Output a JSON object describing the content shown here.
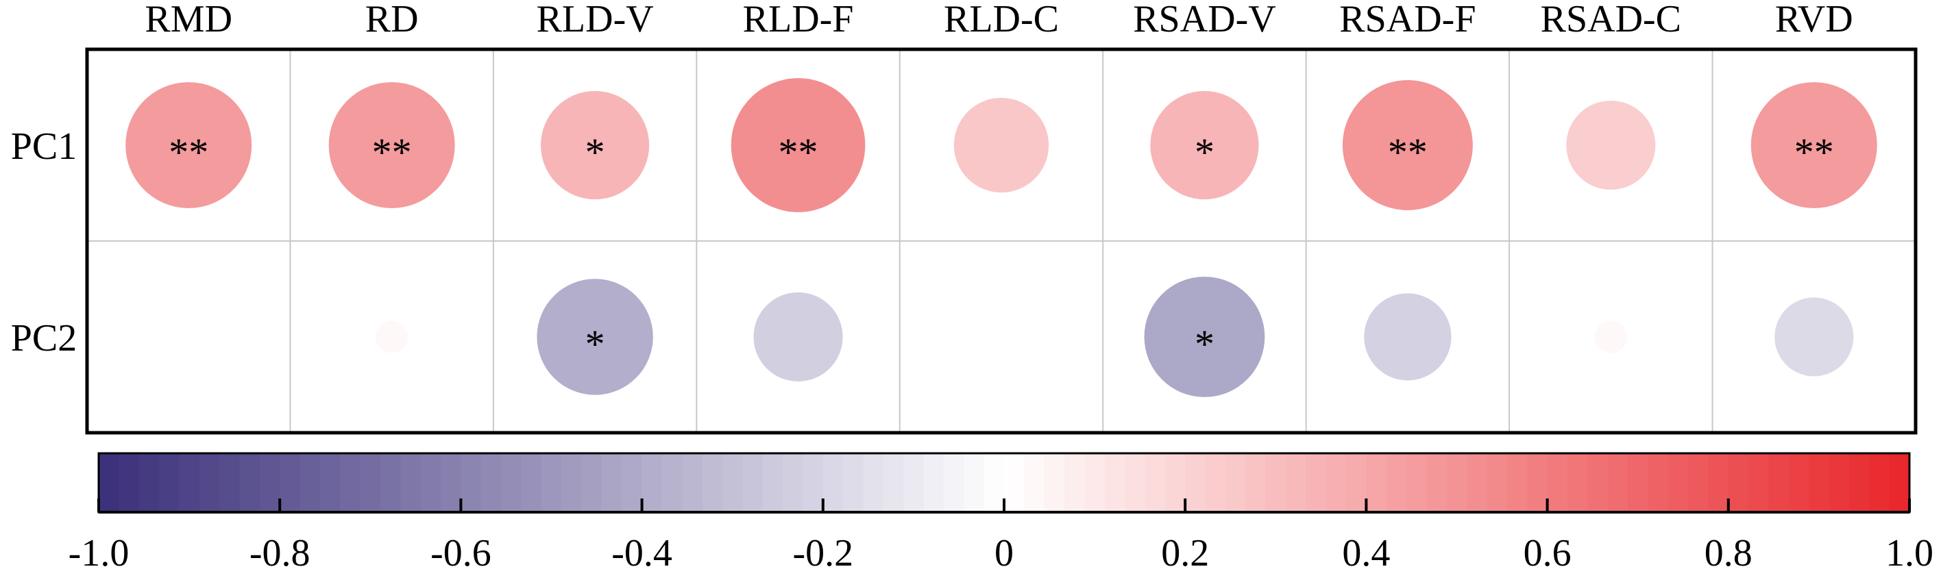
{
  "chart_data": {
    "type": "heatmap",
    "columns": [
      "RMD",
      "RD",
      "RLD-V",
      "RLD-F",
      "RLD-C",
      "RSAD-V",
      "RSAD-F",
      "RSAD-C",
      "RVD"
    ],
    "rows": [
      "PC1",
      "PC2"
    ],
    "values": [
      [
        0.46,
        0.46,
        0.34,
        0.52,
        0.26,
        0.34,
        0.49,
        0.23,
        0.46
      ],
      [
        0.0,
        0.03,
        -0.39,
        -0.23,
        0.0,
        -0.42,
        -0.22,
        0.03,
        -0.18
      ]
    ],
    "significance": [
      [
        "**",
        "**",
        "*",
        "**",
        "",
        "*",
        "**",
        "",
        "**"
      ],
      [
        "",
        "",
        "*",
        "",
        "",
        "*",
        "",
        "",
        ""
      ]
    ],
    "colorbar": {
      "min": -1.0,
      "max": 1.0,
      "ticks": [
        -1.0,
        -0.8,
        -0.6,
        -0.4,
        -0.2,
        0,
        0.2,
        0.4,
        0.6,
        0.8,
        1.0
      ],
      "tick_labels": [
        "-1.0",
        "-0.8",
        "-0.6",
        "-0.4",
        "-0.2",
        "0",
        "0.2",
        "0.4",
        "0.6",
        "0.8",
        "1.0"
      ],
      "negative_color": "#3a2f7a",
      "zero_color": "#ffffff",
      "positive_color": "#e8262a",
      "placement": "bottom"
    },
    "grid": true
  }
}
